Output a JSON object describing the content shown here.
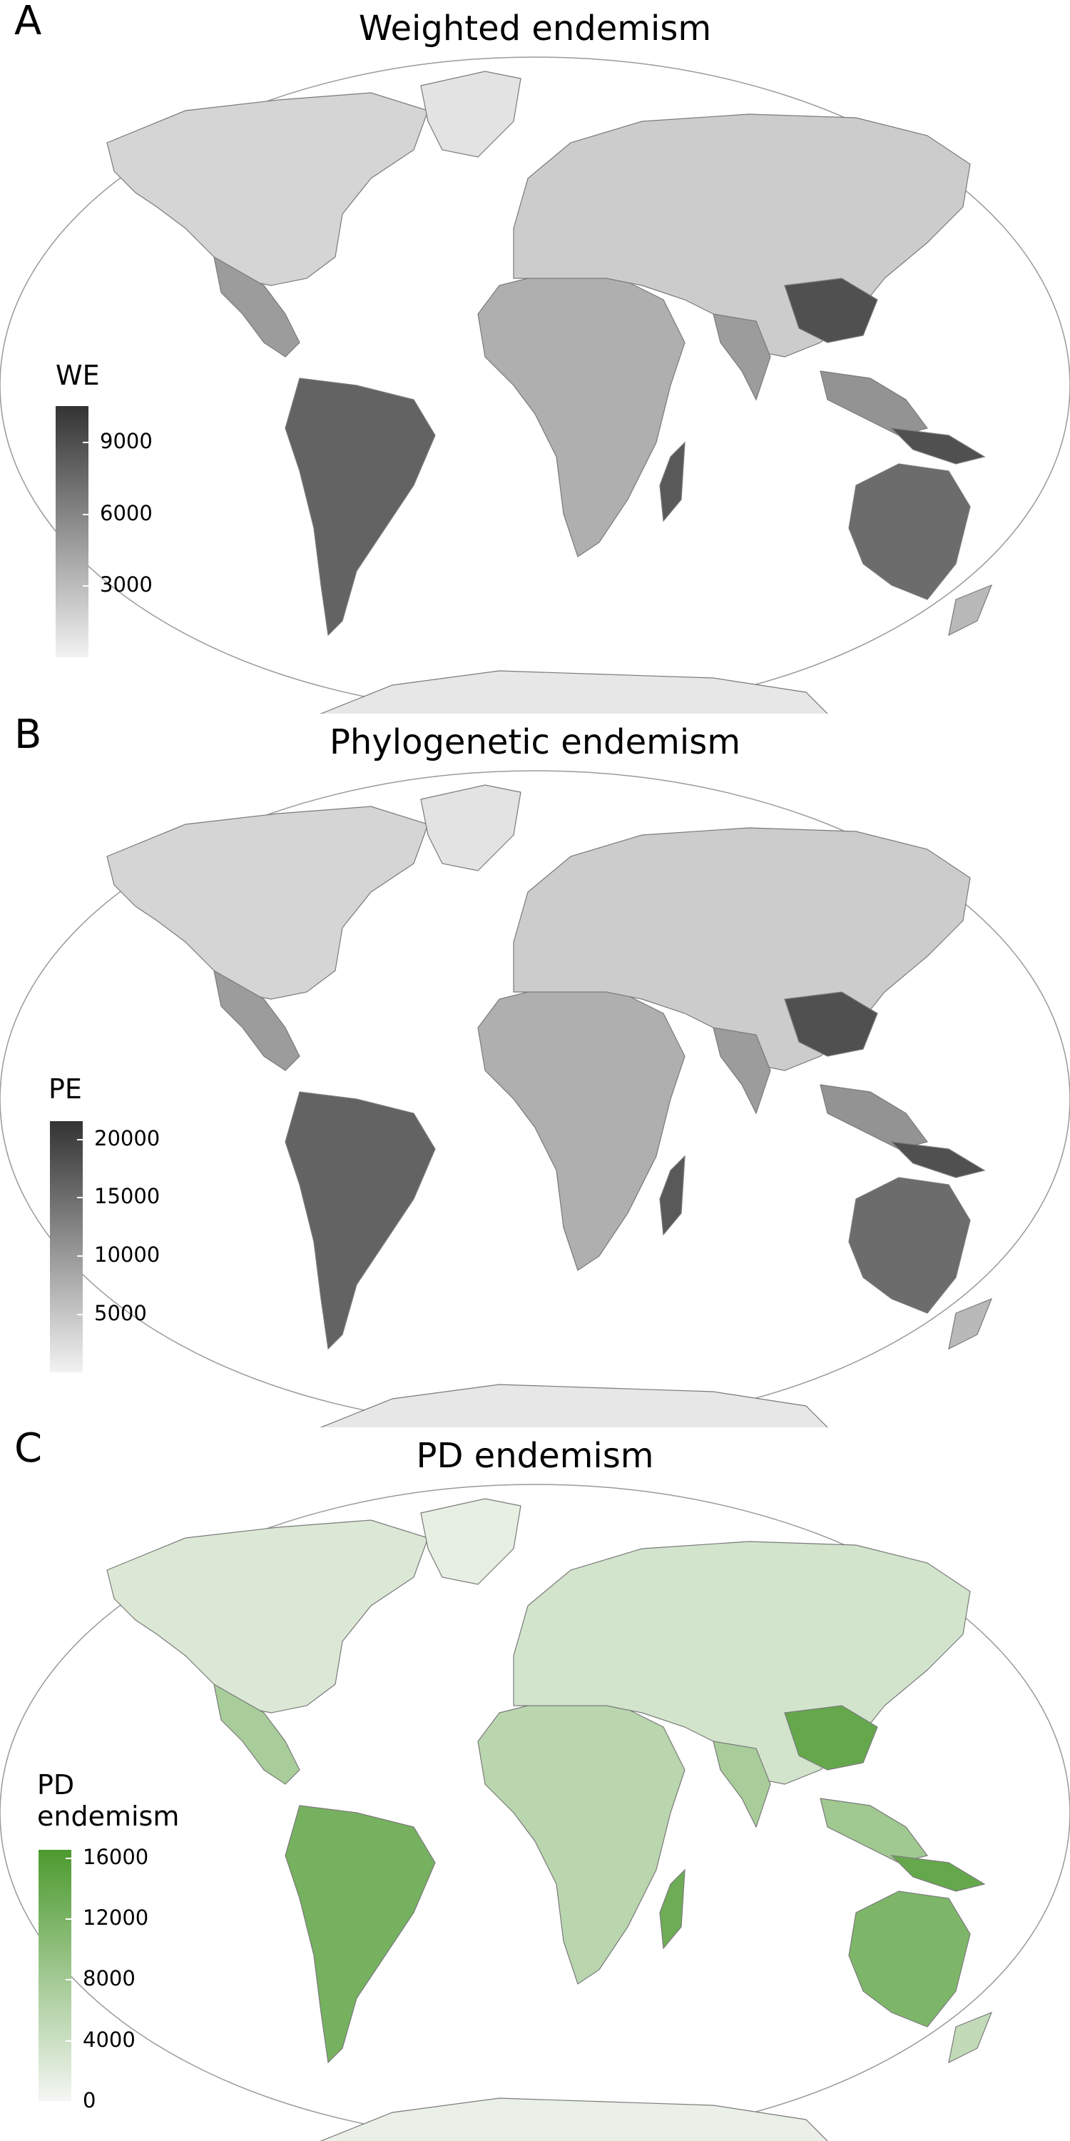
{
  "panels": [
    {
      "letter": "A",
      "title": "Weighted endemism",
      "legend": {
        "title": "WE",
        "ticks": [
          {
            "label": "9000",
            "value": 9000
          },
          {
            "label": "6000",
            "value": 6000
          },
          {
            "label": "3000",
            "value": 3000
          }
        ],
        "scale_min": 0,
        "scale_max": 10500,
        "color_low": "#f2f2f2",
        "color_high": "#333333"
      }
    },
    {
      "letter": "B",
      "title": "Phylogenetic endemism",
      "legend": {
        "title": "PE",
        "ticks": [
          {
            "label": "20000",
            "value": 20000
          },
          {
            "label": "15000",
            "value": 15000
          },
          {
            "label": "10000",
            "value": 10000
          },
          {
            "label": "5000",
            "value": 5000
          }
        ],
        "scale_min": 0,
        "scale_max": 21500,
        "color_low": "#f2f2f2",
        "color_high": "#333333"
      }
    },
    {
      "letter": "C",
      "title": "PD endemism",
      "legend": {
        "title": "PD\nendemism",
        "ticks": [
          {
            "label": "16000",
            "value": 16000
          },
          {
            "label": "12000",
            "value": 12000
          },
          {
            "label": "8000",
            "value": 8000
          },
          {
            "label": "4000",
            "value": 4000
          },
          {
            "label": "0",
            "value": 0
          }
        ],
        "scale_min": 0,
        "scale_max": 16500,
        "color_low": "#f4f6f3",
        "color_high": "#4c9a2e"
      }
    }
  ]
}
